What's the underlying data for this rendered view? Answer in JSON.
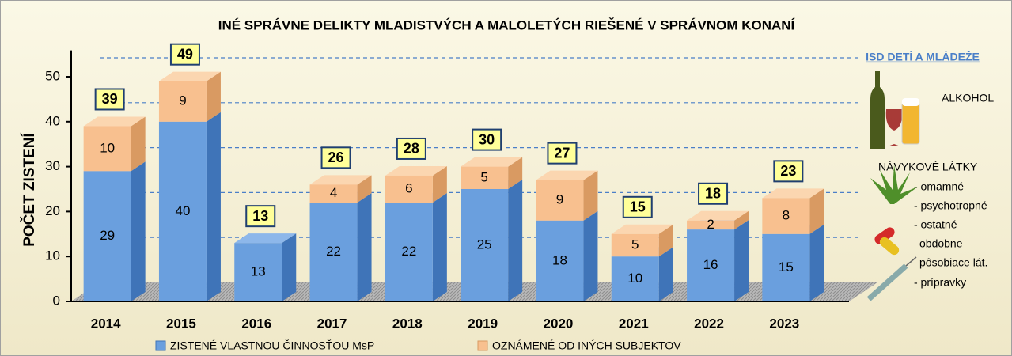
{
  "chart_data": {
    "type": "stacked-bar-3d",
    "title": "INÉ SPRÁVNE DELIKTY MLADISTVÝCH A MALOLETÝCH RIEŠENÉ V SPRÁVNOM KONANÍ",
    "y_label": "POČET ZISTENÍ",
    "categories": [
      "2014",
      "2015",
      "2016",
      "2017",
      "2018",
      "2019",
      "2020",
      "2021",
      "2022",
      "2023"
    ],
    "series": [
      {
        "name": "ZISTENÉ VLASTNOU ČINNOSŤOU MsP",
        "color": "#6a9fde",
        "values": [
          29,
          40,
          13,
          22,
          22,
          25,
          18,
          10,
          16,
          15
        ]
      },
      {
        "name": "OZNÁMENÉ OD INÝCH SUBJEKTOV",
        "color": "#f8c08f",
        "values": [
          10,
          9,
          null,
          4,
          6,
          5,
          9,
          5,
          2,
          8
        ]
      }
    ],
    "totals": [
      39,
      49,
      13,
      26,
      28,
      30,
      27,
      15,
      18,
      23
    ],
    "ylim": [
      0,
      55
    ],
    "yticks": [
      0,
      10,
      20,
      30,
      40,
      50
    ],
    "grid": true
  },
  "side_panel": {
    "heading": "ISD DETÍ A MLÁDEŽE",
    "alcohol": "ALKOHOL",
    "substances": "NÁVYKOVÉ LÁTKY",
    "items": [
      "- omamné",
      "- psychotropné",
      "- ostatné",
      "obdobne",
      "pôsobiace lát.",
      "- prípravky"
    ]
  }
}
